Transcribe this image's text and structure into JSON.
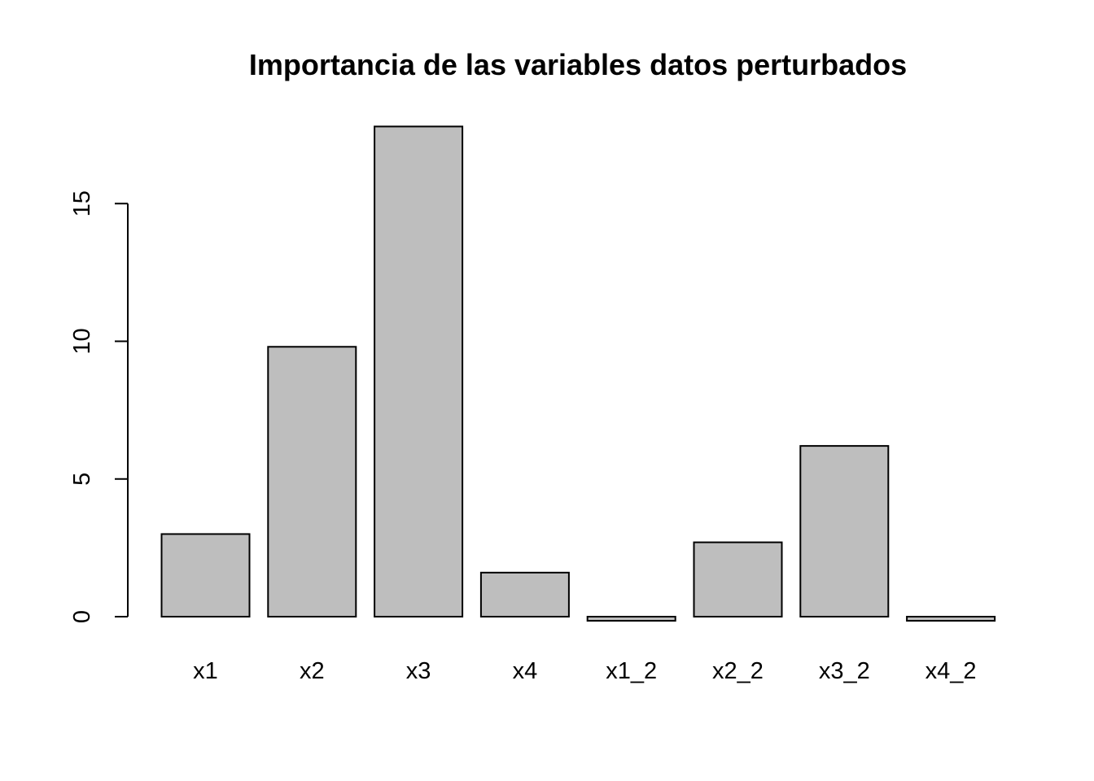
{
  "chart_data": {
    "type": "bar",
    "title": "Importancia de las variables datos perturbados",
    "xlabel": "",
    "ylabel": "",
    "categories": [
      "x1",
      "x2",
      "x3",
      "x4",
      "x1_2",
      "x2_2",
      "x3_2",
      "x4_2"
    ],
    "values": [
      3.0,
      9.8,
      17.8,
      1.6,
      -0.15,
      2.7,
      6.2,
      -0.15
    ],
    "yticks": [
      0,
      5,
      10,
      15
    ],
    "ylim": [
      0,
      17.8
    ],
    "bar_color": "#bebebe",
    "bar_border_color": "#000000",
    "grid": false,
    "legend": "none"
  }
}
